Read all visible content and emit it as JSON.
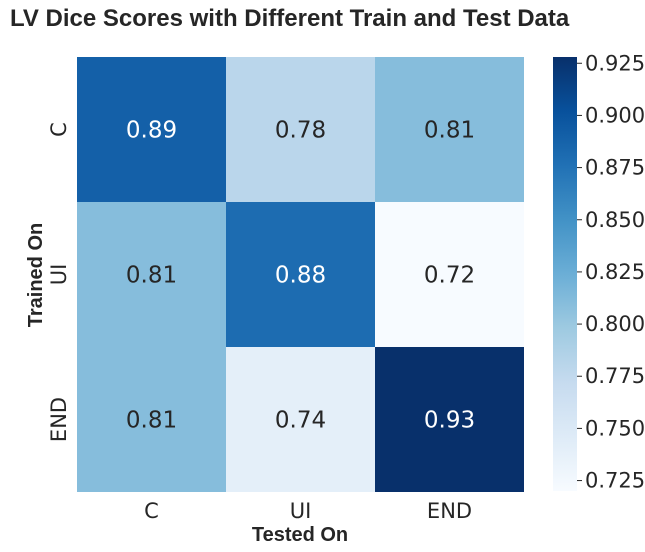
{
  "chart_data": {
    "type": "heatmap",
    "title": "LV Dice Scores with Different Train and Test Data",
    "xlabel": "Tested On",
    "ylabel": "Trained On",
    "x_categories": [
      "C",
      "UI",
      "END"
    ],
    "y_categories": [
      "C",
      "UI",
      "END"
    ],
    "values": [
      [
        0.89,
        0.78,
        0.81
      ],
      [
        0.81,
        0.88,
        0.72
      ],
      [
        0.81,
        0.74,
        0.93
      ]
    ],
    "annotations": [
      [
        "0.89",
        "0.78",
        "0.81"
      ],
      [
        "0.81",
        "0.88",
        "0.72"
      ],
      [
        "0.81",
        "0.74",
        "0.93"
      ]
    ],
    "colormap": "Blues",
    "color_range": [
      0.72,
      0.928
    ],
    "colorbar_ticks": [
      "0.725",
      "0.750",
      "0.775",
      "0.800",
      "0.825",
      "0.850",
      "0.875",
      "0.900",
      "0.925"
    ],
    "colorbar_tick_values": [
      0.725,
      0.75,
      0.775,
      0.8,
      0.825,
      0.85,
      0.875,
      0.9,
      0.925
    ]
  }
}
